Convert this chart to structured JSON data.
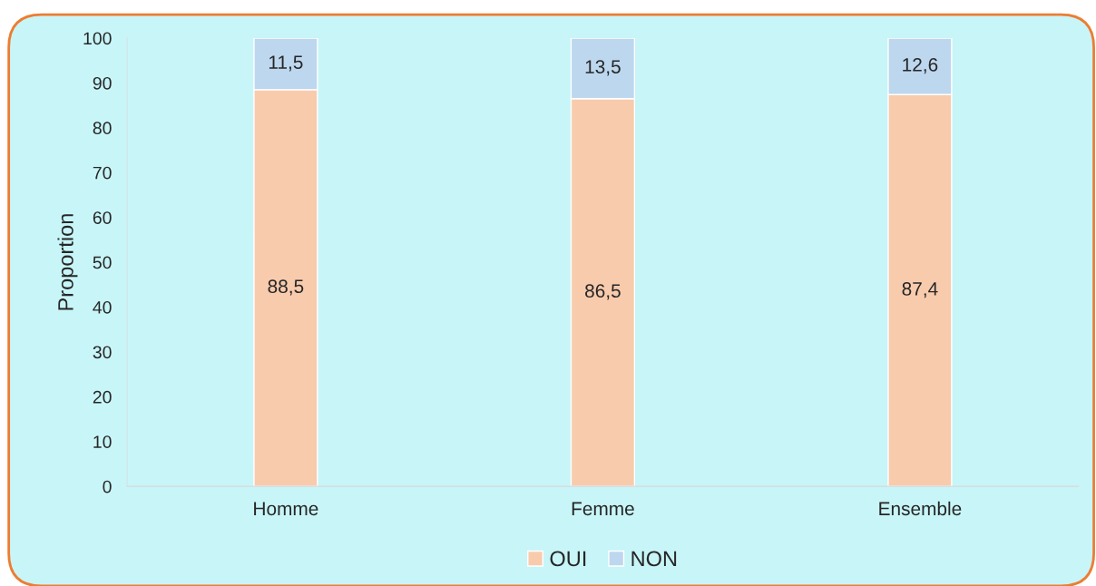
{
  "chart_data": {
    "type": "bar",
    "stacked": true,
    "ylabel": "Proportion",
    "categories": [
      "Homme",
      "Femme",
      "Ensemble"
    ],
    "series": [
      {
        "name": "OUI",
        "color": "#f8cbad",
        "values": [
          88.5,
          86.5,
          87.4
        ],
        "value_labels": [
          "88,5",
          "86,5",
          "87,4"
        ]
      },
      {
        "name": "NON",
        "color": "#bdd7ee",
        "values": [
          11.5,
          13.5,
          12.6
        ],
        "value_labels": [
          "11,5",
          "13,5",
          "12,6"
        ]
      }
    ],
    "ylim": [
      0,
      100
    ],
    "yticks": [
      0,
      10,
      20,
      30,
      40,
      50,
      60,
      70,
      80,
      90,
      100
    ],
    "grid": false,
    "legend": "bottom"
  }
}
